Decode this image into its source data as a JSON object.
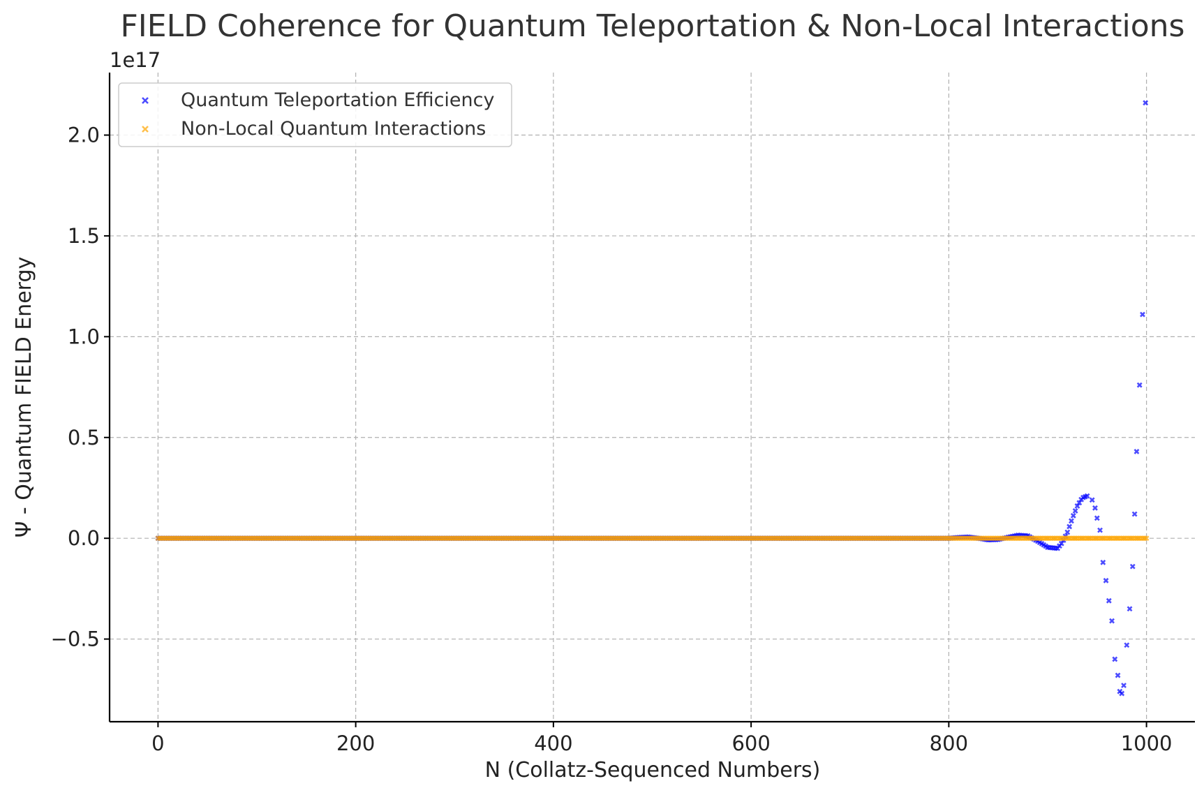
{
  "chart_data": {
    "type": "scatter",
    "title": "FIELD Coherence for Quantum Teleportation & Non-Local Interactions",
    "xlabel": "N (Collatz-Sequenced Numbers)",
    "ylabel": "Ψ - Quantum FIELD Energy",
    "y_offset_label": "1e17",
    "xlim": [
      -49,
      1049
    ],
    "ylim": [
      -0.91,
      2.31
    ],
    "y_scale_factor": 1e+17,
    "xticks": [
      0,
      200,
      400,
      600,
      800,
      1000
    ],
    "xtick_labels": [
      "0",
      "200",
      "400",
      "600",
      "800",
      "1000"
    ],
    "yticks": [
      -0.5,
      0.0,
      0.5,
      1.0,
      1.5,
      2.0
    ],
    "ytick_labels": [
      "−0.5",
      "0.0",
      "0.5",
      "1.0",
      "1.5",
      "2.0"
    ],
    "grid": true,
    "legend_position": "top-left",
    "series": [
      {
        "name": "Quantum Teleportation Efficiency",
        "color": "#0000ff",
        "marker": "x",
        "x": [
          0,
          800,
          810,
          820,
          830,
          840,
          850,
          860,
          870,
          880,
          890,
          900,
          910,
          915,
          920,
          925,
          930,
          935,
          940,
          945,
          948,
          950,
          953,
          956,
          959,
          962,
          965,
          968,
          971,
          973,
          975,
          977,
          980,
          983,
          986,
          988,
          990,
          993,
          996,
          999
        ],
        "y": [
          0.0,
          0.0,
          0.004,
          0.006,
          0.0,
          -0.008,
          -0.006,
          0.005,
          0.015,
          0.012,
          -0.015,
          -0.045,
          -0.05,
          -0.02,
          0.03,
          0.1,
          0.16,
          0.2,
          0.21,
          0.19,
          0.15,
          0.1,
          0.04,
          -0.12,
          -0.21,
          -0.31,
          -0.41,
          -0.6,
          -0.68,
          -0.76,
          -0.77,
          -0.73,
          -0.53,
          -0.35,
          -0.14,
          0.12,
          0.43,
          0.76,
          1.11,
          2.16
        ]
      },
      {
        "name": "Non-Local Quantum Interactions",
        "color": "#ffa500",
        "marker": "x",
        "x": [
          0,
          1000
        ],
        "y": [
          0.0,
          0.0
        ]
      }
    ]
  }
}
